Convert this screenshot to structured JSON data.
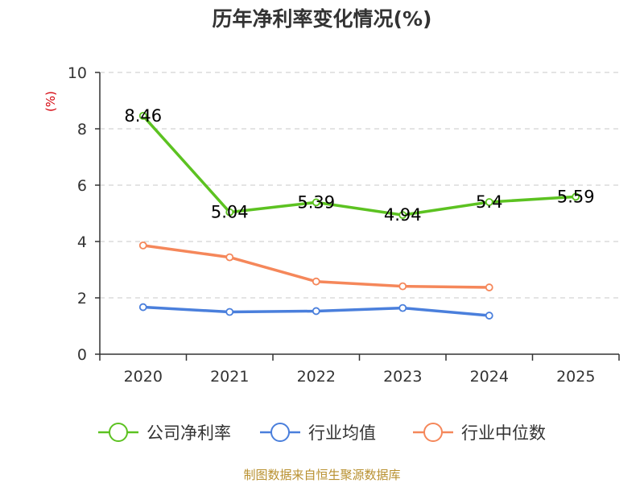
{
  "chart_data": {
    "type": "line",
    "title": "历年净利率变化情况(%)",
    "ylabel": "(%)",
    "xlabel": "",
    "categories": [
      "2020",
      "2021",
      "2022",
      "2023",
      "2024",
      "2025"
    ],
    "ylim": [
      0,
      10
    ],
    "yticks": [
      0,
      2,
      4,
      6,
      8,
      10
    ],
    "grid": true,
    "legend_position": "bottom",
    "series": [
      {
        "name": "公司净利率",
        "color": "#5cc221",
        "values": [
          8.46,
          5.04,
          5.39,
          4.94,
          5.4,
          5.59
        ],
        "labels": [
          "8.46",
          "5.04",
          "5.39",
          "4.94",
          "5.4",
          "5.59"
        ],
        "show_labels": true
      },
      {
        "name": "行业均值",
        "color": "#4a7fdc",
        "values": [
          1.67,
          1.5,
          1.53,
          1.64,
          1.37,
          null
        ],
        "show_labels": false
      },
      {
        "name": "行业中位数",
        "color": "#f5875a",
        "values": [
          3.86,
          3.44,
          2.58,
          2.41,
          2.37,
          null
        ],
        "show_labels": false
      }
    ],
    "source": "制图数据来自恒生聚源数据库"
  }
}
